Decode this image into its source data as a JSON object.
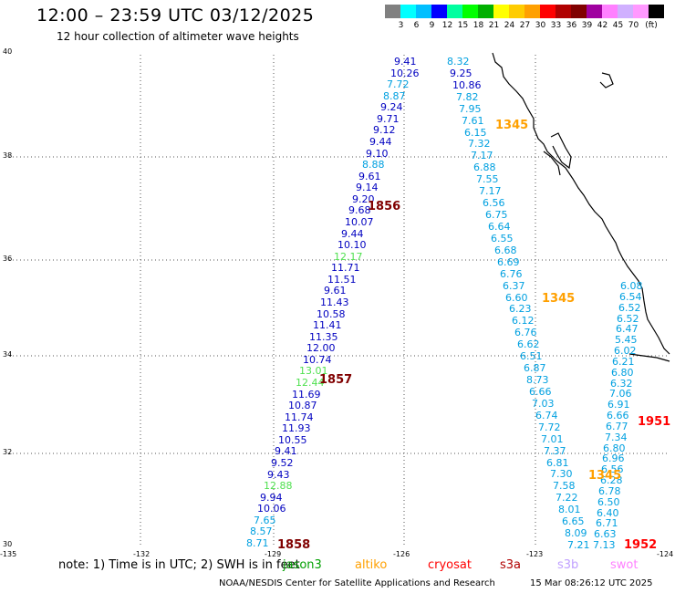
{
  "title": "12:00 – 23:59 UTC 03/12/2025",
  "subtitle": "12 hour collection of altimeter wave heights",
  "color_scale": {
    "unit": "(ft)",
    "colors": [
      "#808080",
      "#00ffff",
      "#00bfff",
      "#0000ff",
      "#00ffa0",
      "#00ff00",
      "#00b000",
      "#ffff00",
      "#ffcc00",
      "#ffa000",
      "#ff0000",
      "#b00000",
      "#800000",
      "#a000a0",
      "#ff80ff",
      "#d0b0ff",
      "#ff99ff",
      "#000000"
    ],
    "labels": [
      "3",
      "6",
      "9",
      "12",
      "15",
      "18",
      "21",
      "24",
      "27",
      "30",
      "33",
      "36",
      "39",
      "42",
      "45",
      "70"
    ]
  },
  "axes": {
    "lon_labels": [
      "-135",
      "-132",
      "-129",
      "-126",
      "-123",
      "-124"
    ],
    "lat_labels": [
      "40",
      "38",
      "36",
      "34",
      "32",
      "30"
    ]
  },
  "passes": [
    {
      "time": "1856",
      "color": "#800000"
    },
    {
      "time": "1857",
      "color": "#800000"
    },
    {
      "time": "1858",
      "color": "#800000"
    },
    {
      "time": "1345",
      "color": "#ffa000"
    },
    {
      "time": "1345",
      "color": "#ffa000"
    },
    {
      "time": "1345",
      "color": "#ffa000"
    },
    {
      "time": "1951",
      "color": "#ff0000"
    },
    {
      "time": "1952",
      "color": "#ff0000"
    }
  ],
  "tracks": [
    {
      "name": "track-west",
      "points": [
        {
          "v": "9.41",
          "c": "#0000c0"
        },
        {
          "v": "10.26",
          "c": "#0000c0"
        },
        {
          "v": "7.72",
          "c": "#00a0e0"
        },
        {
          "v": "8.87",
          "c": "#00a0e0"
        },
        {
          "v": "9.24",
          "c": "#0000c0"
        },
        {
          "v": "9.71",
          "c": "#0000c0"
        },
        {
          "v": "9.12",
          "c": "#0000c0"
        },
        {
          "v": "9.44",
          "c": "#0000c0"
        },
        {
          "v": "9.10",
          "c": "#0000c0"
        },
        {
          "v": "8.88",
          "c": "#00a0e0"
        },
        {
          "v": "9.61",
          "c": "#0000c0"
        },
        {
          "v": "9.14",
          "c": "#0000c0"
        },
        {
          "v": "9.20",
          "c": "#0000c0"
        },
        {
          "v": "9.68",
          "c": "#0000c0"
        },
        {
          "v": "10.07",
          "c": "#0000c0"
        },
        {
          "v": "9.44",
          "c": "#0000c0"
        },
        {
          "v": "10.10",
          "c": "#0000c0"
        },
        {
          "v": "12.17",
          "c": "#50e050"
        },
        {
          "v": "11.71",
          "c": "#0000c0"
        },
        {
          "v": "11.51",
          "c": "#0000c0"
        },
        {
          "v": "9.61",
          "c": "#0000c0"
        },
        {
          "v": "11.43",
          "c": "#0000c0"
        },
        {
          "v": "10.58",
          "c": "#0000c0"
        },
        {
          "v": "11.41",
          "c": "#0000c0"
        },
        {
          "v": "11.35",
          "c": "#0000c0"
        },
        {
          "v": "12.00",
          "c": "#0000c0"
        },
        {
          "v": "10.74",
          "c": "#0000c0"
        },
        {
          "v": "13.01",
          "c": "#50e050"
        },
        {
          "v": "12.44",
          "c": "#50e050"
        },
        {
          "v": "11.69",
          "c": "#0000c0"
        },
        {
          "v": "10.87",
          "c": "#0000c0"
        },
        {
          "v": "11.74",
          "c": "#0000c0"
        },
        {
          "v": "11.93",
          "c": "#0000c0"
        },
        {
          "v": "10.55",
          "c": "#0000c0"
        },
        {
          "v": "9.41",
          "c": "#0000c0"
        },
        {
          "v": "9.52",
          "c": "#0000c0"
        },
        {
          "v": "9.43",
          "c": "#0000c0"
        },
        {
          "v": "12.88",
          "c": "#50e050"
        },
        {
          "v": "9.94",
          "c": "#0000c0"
        },
        {
          "v": "10.06",
          "c": "#0000c0"
        },
        {
          "v": "7.65",
          "c": "#00a0e0"
        },
        {
          "v": "8.57",
          "c": "#00a0e0"
        },
        {
          "v": "8.71",
          "c": "#00a0e0"
        }
      ]
    },
    {
      "name": "track-middle",
      "points": [
        {
          "v": "8.32",
          "c": "#00a0e0"
        },
        {
          "v": "9.25",
          "c": "#0000c0"
        },
        {
          "v": "10.86",
          "c": "#0000c0"
        },
        {
          "v": "7.82",
          "c": "#00a0e0"
        },
        {
          "v": "7.95",
          "c": "#00a0e0"
        },
        {
          "v": "7.61",
          "c": "#00a0e0"
        },
        {
          "v": "6.15",
          "c": "#00a0e0"
        },
        {
          "v": "7.32",
          "c": "#00a0e0"
        },
        {
          "v": "7.17",
          "c": "#00a0e0"
        },
        {
          "v": "6.88",
          "c": "#00a0e0"
        },
        {
          "v": "7.55",
          "c": "#00a0e0"
        },
        {
          "v": "7.17",
          "c": "#00a0e0"
        },
        {
          "v": "6.56",
          "c": "#00a0e0"
        },
        {
          "v": "6.75",
          "c": "#00a0e0"
        },
        {
          "v": "6.64",
          "c": "#00a0e0"
        },
        {
          "v": "6.55",
          "c": "#00a0e0"
        },
        {
          "v": "6.68",
          "c": "#00a0e0"
        },
        {
          "v": "6.69",
          "c": "#00a0e0"
        },
        {
          "v": "6.76",
          "c": "#00a0e0"
        },
        {
          "v": "6.37",
          "c": "#00a0e0"
        },
        {
          "v": "6.60",
          "c": "#00a0e0"
        },
        {
          "v": "6.23",
          "c": "#00a0e0"
        },
        {
          "v": "6.12",
          "c": "#00a0e0"
        },
        {
          "v": "6.76",
          "c": "#00a0e0"
        },
        {
          "v": "6.62",
          "c": "#00a0e0"
        },
        {
          "v": "6.51",
          "c": "#00a0e0"
        },
        {
          "v": "6.87",
          "c": "#00a0e0"
        },
        {
          "v": "8.73",
          "c": "#00a0e0"
        },
        {
          "v": "6.66",
          "c": "#00a0e0"
        },
        {
          "v": "7.03",
          "c": "#00a0e0"
        },
        {
          "v": "6.74",
          "c": "#00a0e0"
        },
        {
          "v": "7.72",
          "c": "#00a0e0"
        },
        {
          "v": "7.01",
          "c": "#00a0e0"
        },
        {
          "v": "7.37",
          "c": "#00a0e0"
        },
        {
          "v": "6.81",
          "c": "#00a0e0"
        },
        {
          "v": "7.30",
          "c": "#00a0e0"
        },
        {
          "v": "7.58",
          "c": "#00a0e0"
        },
        {
          "v": "7.22",
          "c": "#00a0e0"
        },
        {
          "v": "8.01",
          "c": "#00a0e0"
        },
        {
          "v": "6.65",
          "c": "#00a0e0"
        },
        {
          "v": "8.09",
          "c": "#00a0e0"
        },
        {
          "v": "7.21",
          "c": "#00a0e0"
        }
      ]
    },
    {
      "name": "track-east",
      "points": [
        {
          "v": "6.08",
          "c": "#00a0e0"
        },
        {
          "v": "6.54",
          "c": "#00a0e0"
        },
        {
          "v": "6.52",
          "c": "#00a0e0"
        },
        {
          "v": "6.52",
          "c": "#00a0e0"
        },
        {
          "v": "6.47",
          "c": "#00a0e0"
        },
        {
          "v": "5.45",
          "c": "#00a0e0"
        },
        {
          "v": "6.02",
          "c": "#00a0e0"
        },
        {
          "v": "6.21",
          "c": "#00a0e0"
        },
        {
          "v": "6.80",
          "c": "#00a0e0"
        },
        {
          "v": "6.32",
          "c": "#00a0e0"
        },
        {
          "v": "7.06",
          "c": "#00a0e0"
        },
        {
          "v": "6.91",
          "c": "#00a0e0"
        },
        {
          "v": "6.66",
          "c": "#00a0e0"
        },
        {
          "v": "6.77",
          "c": "#00a0e0"
        },
        {
          "v": "7.34",
          "c": "#00a0e0"
        },
        {
          "v": "6.80",
          "c": "#00a0e0"
        },
        {
          "v": "6.96",
          "c": "#00a0e0"
        },
        {
          "v": "6.56",
          "c": "#00a0e0"
        },
        {
          "v": "6.28",
          "c": "#00a0e0"
        },
        {
          "v": "6.78",
          "c": "#00a0e0"
        },
        {
          "v": "6.50",
          "c": "#00a0e0"
        },
        {
          "v": "6.40",
          "c": "#00a0e0"
        },
        {
          "v": "6.71",
          "c": "#00a0e0"
        },
        {
          "v": "6.63",
          "c": "#00a0e0"
        },
        {
          "v": "7.13",
          "c": "#00a0e0"
        }
      ]
    }
  ],
  "note": "note: 1) Time is in UTC; 2) SWH is in feet",
  "satellites": [
    {
      "name": "jason3",
      "color": "#00a000"
    },
    {
      "name": "altiko",
      "color": "#ffa000"
    },
    {
      "name": "cryosat",
      "color": "#ff0000"
    },
    {
      "name": "s3a",
      "color": "#b00000"
    },
    {
      "name": "s3b",
      "color": "#c0a0ff"
    },
    {
      "name": "swot",
      "color": "#ff80ff"
    }
  ],
  "credit": "NOAA/NESDIS Center for Satellite Applications and Research",
  "timestamp": "15 Mar 08:26:12 UTC 2025"
}
